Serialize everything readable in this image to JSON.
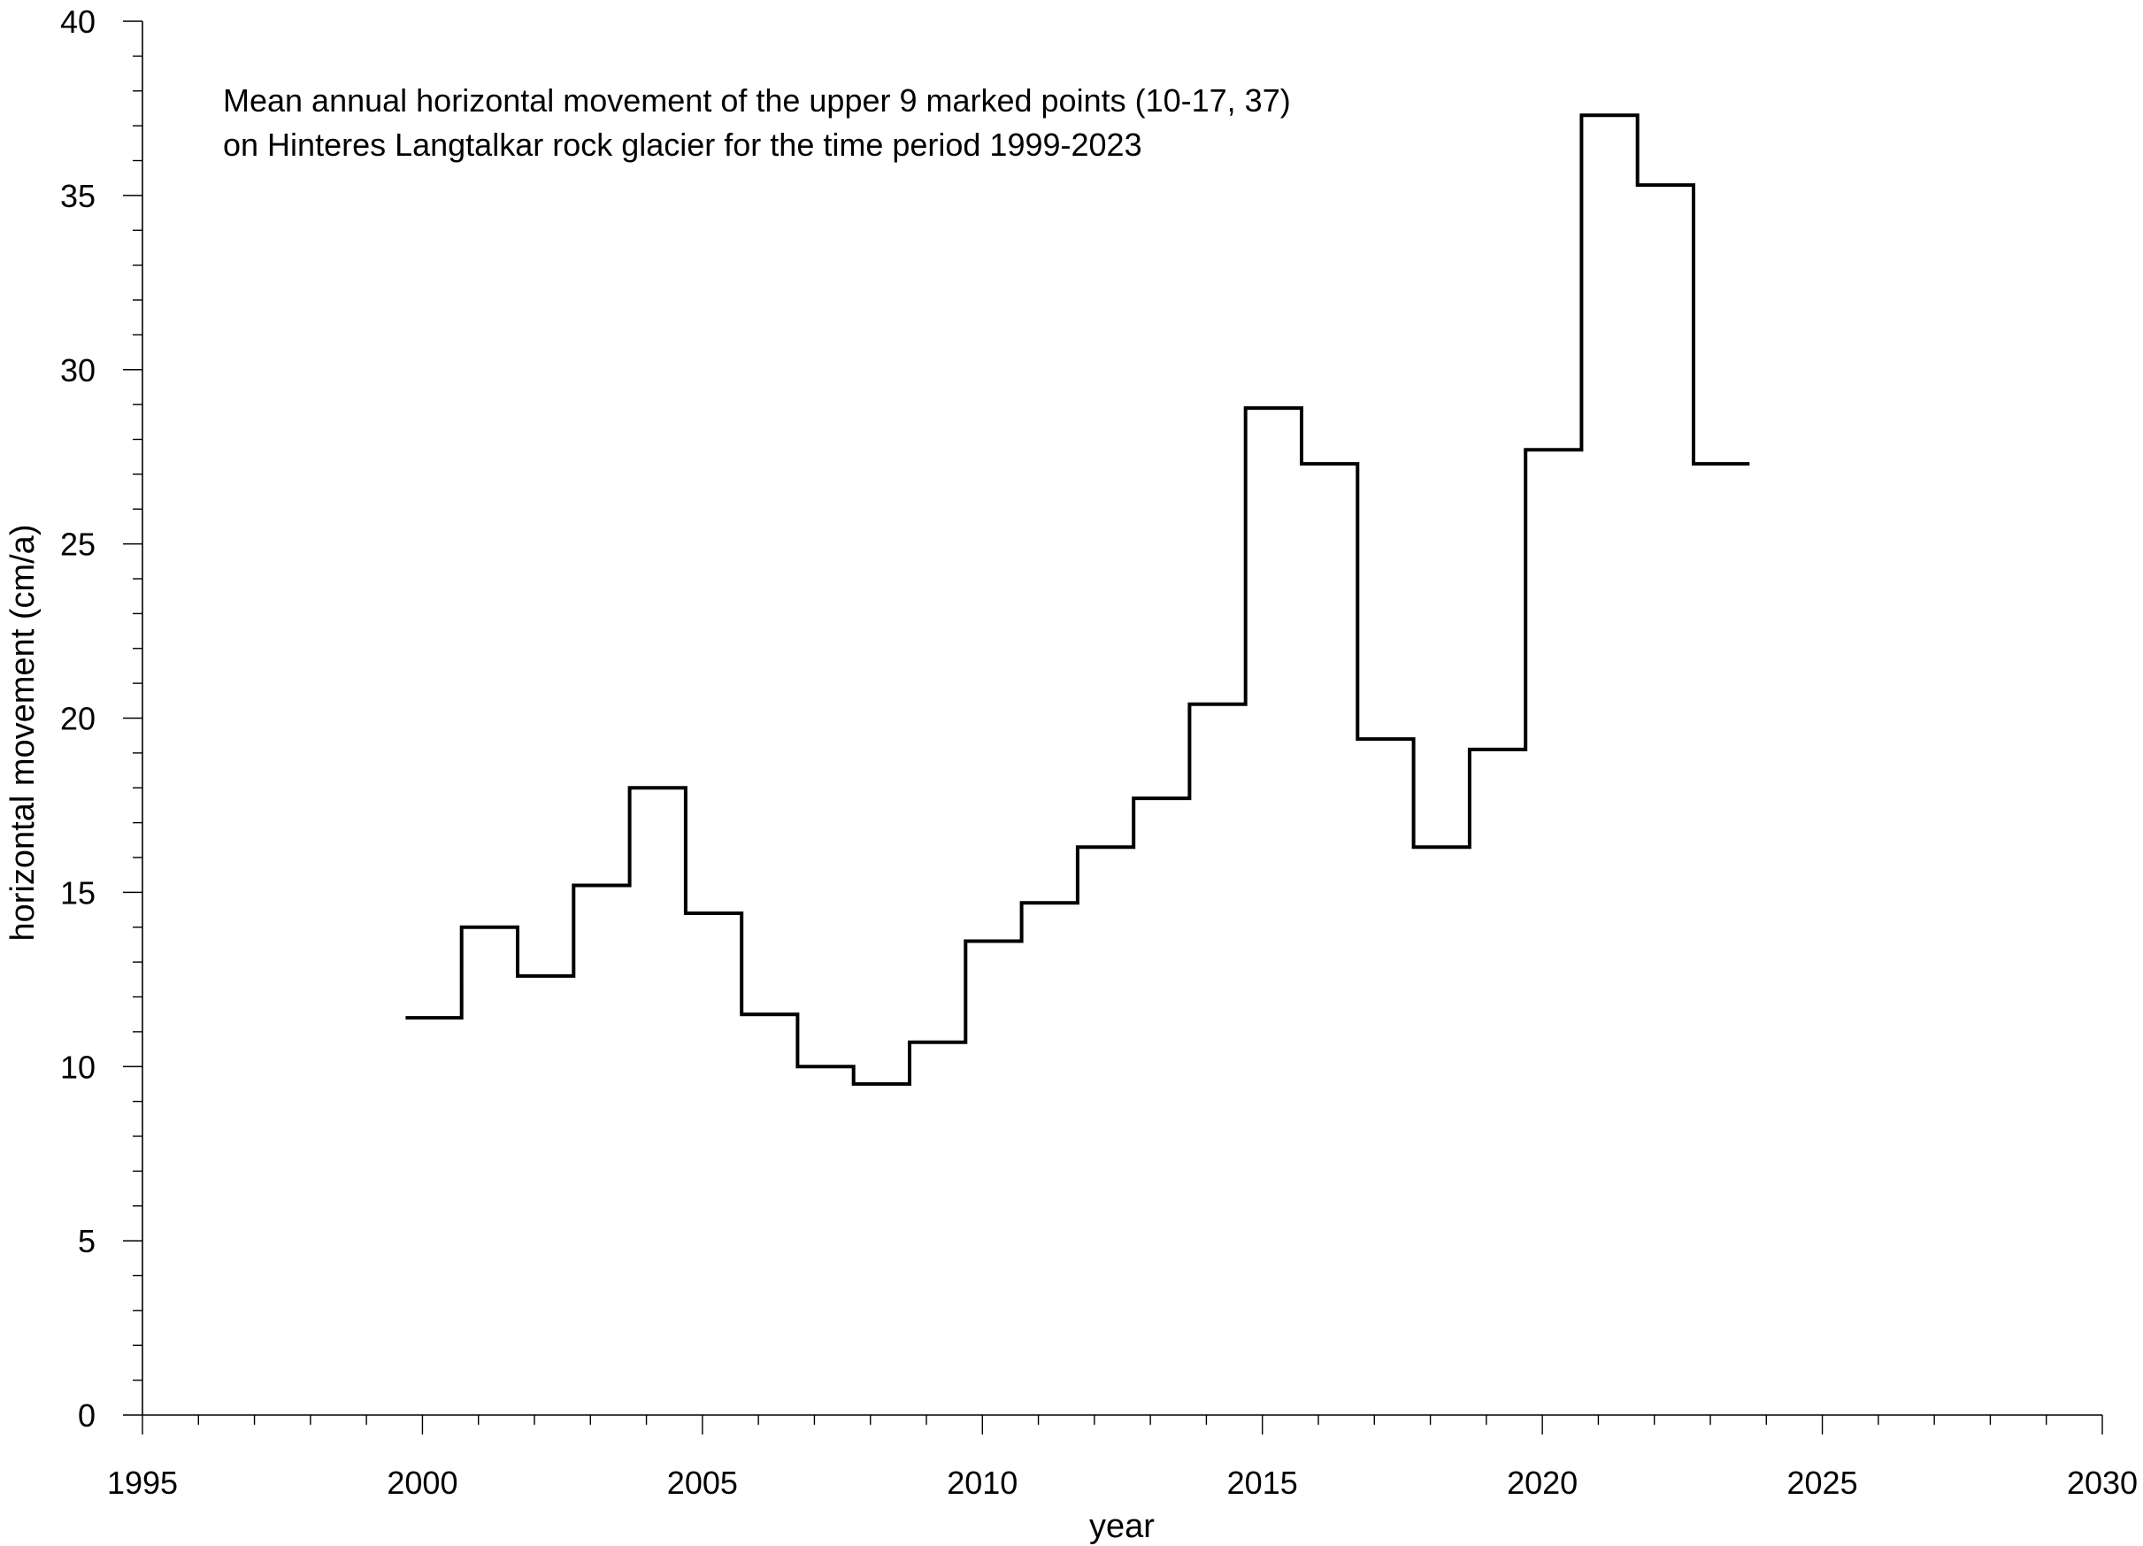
{
  "chart_data": {
    "type": "line",
    "step": true,
    "title_lines": [
      "Mean annual horizontal movement of the upper 9 marked points (10-17, 37)",
      "on Hinteres Langtalkar rock glacier for the time period 1999-2023"
    ],
    "xlabel": "year",
    "ylabel": "horizontal movement (cm/a)",
    "xlim": [
      1995,
      2030
    ],
    "ylim": [
      0,
      40
    ],
    "x_major_ticks": [
      1995,
      2000,
      2005,
      2010,
      2015,
      2020,
      2025,
      2030
    ],
    "x_minor_step": 1,
    "y_major_ticks": [
      0,
      5,
      10,
      15,
      20,
      25,
      30,
      35,
      40
    ],
    "y_minor_step": 1,
    "grid": false,
    "line_color": "#000000",
    "series": [
      {
        "periods": [
          {
            "from": 1999.7,
            "to": 2000.7,
            "value": 11.4
          },
          {
            "from": 2000.7,
            "to": 2001.7,
            "value": 14.0
          },
          {
            "from": 2001.7,
            "to": 2002.7,
            "value": 12.6
          },
          {
            "from": 2002.7,
            "to": 2003.7,
            "value": 15.2
          },
          {
            "from": 2003.7,
            "to": 2004.7,
            "value": 18.0
          },
          {
            "from": 2004.7,
            "to": 2005.7,
            "value": 14.4
          },
          {
            "from": 2005.7,
            "to": 2006.7,
            "value": 11.5
          },
          {
            "from": 2006.7,
            "to": 2007.7,
            "value": 10.0
          },
          {
            "from": 2007.7,
            "to": 2008.7,
            "value": 9.5
          },
          {
            "from": 2008.7,
            "to": 2009.7,
            "value": 10.7
          },
          {
            "from": 2009.7,
            "to": 2010.7,
            "value": 13.6
          },
          {
            "from": 2010.7,
            "to": 2011.7,
            "value": 14.7
          },
          {
            "from": 2011.7,
            "to": 2012.7,
            "value": 16.3
          },
          {
            "from": 2012.7,
            "to": 2013.7,
            "value": 17.7
          },
          {
            "from": 2013.7,
            "to": 2014.7,
            "value": 20.4
          },
          {
            "from": 2014.7,
            "to": 2015.7,
            "value": 28.9
          },
          {
            "from": 2015.7,
            "to": 2016.7,
            "value": 27.3
          },
          {
            "from": 2016.7,
            "to": 2017.7,
            "value": 19.4
          },
          {
            "from": 2017.7,
            "to": 2018.7,
            "value": 16.3
          },
          {
            "from": 2018.7,
            "to": 2019.7,
            "value": 19.1
          },
          {
            "from": 2019.7,
            "to": 2020.7,
            "value": 27.7
          },
          {
            "from": 2020.7,
            "to": 2021.7,
            "value": 37.3
          },
          {
            "from": 2021.7,
            "to": 2022.7,
            "value": 35.3
          },
          {
            "from": 2022.7,
            "to": 2023.7,
            "value": 27.3
          }
        ]
      }
    ]
  }
}
